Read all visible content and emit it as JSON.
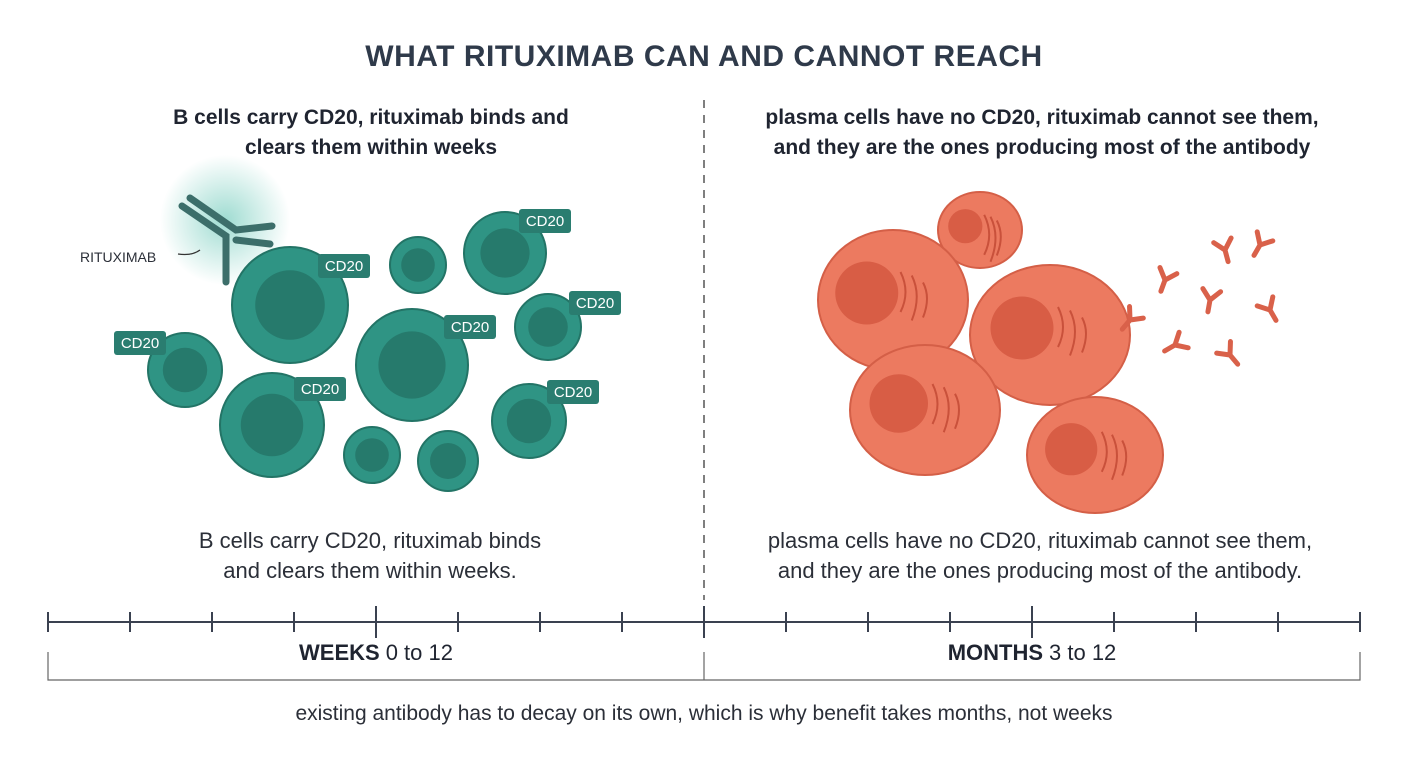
{
  "title": "WHAT RITUXIMAB CAN AND CANNOT REACH",
  "left": {
    "heading_lines": [
      "B cells carry CD20, rituximab binds and",
      "clears them within weeks"
    ],
    "antibody_label": "RITUXIMAB",
    "marker_labels": [
      "CD20",
      "CD20",
      "CD20",
      "CD20",
      "CD20",
      "CD20",
      "CD20"
    ],
    "caption_lines": [
      "B cells carry CD20, rituximab binds",
      "and clears them within weeks."
    ]
  },
  "right": {
    "heading_lines": [
      "plasma cells have no CD20, rituximab cannot see them,",
      "and they are the ones producing most of the antibody"
    ],
    "caption_lines": [
      "plasma cells have no CD20, rituximab cannot see them,",
      "and they are the ones producing most of the antibody."
    ]
  },
  "timeline": {
    "left": {
      "unit": "WEEKS",
      "range": "0 to 12"
    },
    "right": {
      "unit": "MONTHS",
      "range": "3 to 12"
    }
  },
  "footer": "existing antibody has to decay on its own, which is why benefit takes months, not weeks"
}
